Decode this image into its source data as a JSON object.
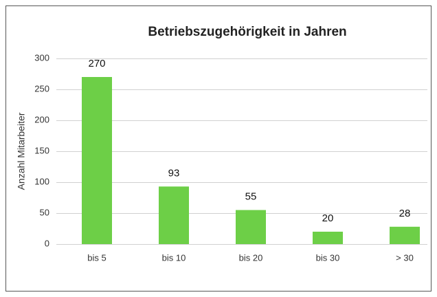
{
  "chart_data": {
    "type": "bar",
    "title": "Betriebszugehörigkeit in Jahren",
    "ylabel": "Anzahl Mitarbeiter",
    "categories": [
      "bis 5",
      "bis 10",
      "bis 20",
      "bis 30",
      "> 30"
    ],
    "values": [
      270,
      93,
      55,
      20,
      28
    ],
    "color": "#6dcf47",
    "ylim": [
      0,
      300
    ],
    "yticks": [
      0,
      50,
      100,
      150,
      200,
      250,
      300
    ],
    "grid": true,
    "data_labels": true
  }
}
